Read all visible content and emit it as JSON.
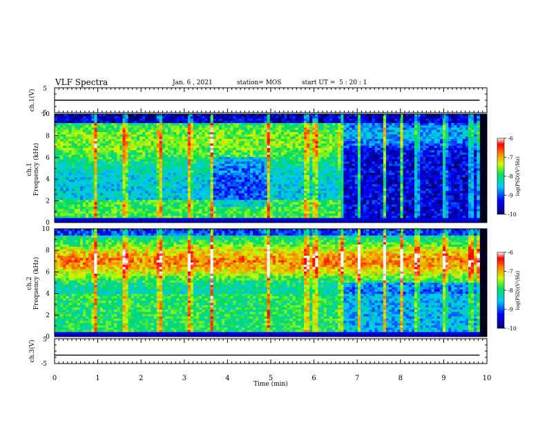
{
  "header": {
    "title": "VLF Spectra",
    "date": "Jan. 6 , 2021",
    "station": "station= MOS",
    "start_ut": "start UT =  5 : 20 : 1"
  },
  "chart_data": [
    {
      "type": "line",
      "panel": "ch1-waveform",
      "ylabel": "ch.1(V)",
      "ylim": [
        -5,
        5
      ],
      "y_ticks": [
        "5",
        "-5"
      ],
      "x": [
        0,
        10
      ],
      "values": [
        0,
        0
      ],
      "color": "#000000"
    },
    {
      "type": "heatmap",
      "panel": "ch1-spectrogram",
      "ylabel": "ch.1\nFrequency (kHz)",
      "xlim": [
        0,
        10
      ],
      "ylim": [
        0,
        10
      ],
      "y_ticks": [
        "0",
        "2",
        "4",
        "6",
        "8",
        "10"
      ],
      "data_end_min": 9.83,
      "colorbar": {
        "label": "log(PSD)(V²/Hz)",
        "ticks": [
          "-6",
          "-7",
          "-8",
          "-9",
          "-10"
        ],
        "range": [
          -10,
          -6
        ]
      },
      "transient_bursts_min": [
        0.9,
        1.6,
        2.4,
        3.1,
        3.6,
        4.9,
        5.8,
        6.0,
        6.6,
        7.0,
        7.6,
        8.0,
        8.35,
        9.0,
        9.6,
        9.8
      ]
    },
    {
      "type": "heatmap",
      "panel": "ch2-spectrogram",
      "ylabel": "ch.2\nFrequency (kHz)",
      "xlim": [
        0,
        10
      ],
      "ylim": [
        0,
        10
      ],
      "y_ticks": [
        "0",
        "2",
        "4",
        "6",
        "8",
        "10"
      ],
      "data_end_min": 9.83,
      "colorbar": {
        "label": "log(PSD)(V²/Hz)",
        "ticks": [
          "-6",
          "-7",
          "-8",
          "-9",
          "-10"
        ],
        "range": [
          -10,
          -6
        ]
      },
      "transient_bursts_min": [
        0.9,
        1.6,
        2.4,
        3.1,
        3.6,
        4.9,
        5.8,
        6.0,
        6.6,
        7.0,
        7.6,
        8.0,
        8.35,
        9.0,
        9.6,
        9.8
      ]
    },
    {
      "type": "line",
      "panel": "ch3-waveform",
      "ylabel": "ch.3(V)",
      "ylim": [
        -5,
        5
      ],
      "y_ticks": [
        "5",
        "-5"
      ],
      "x": [
        0,
        10
      ],
      "values": [
        -1.6,
        -1.6
      ],
      "color": "#000000"
    }
  ],
  "x_axis": {
    "label": "Time  (min)",
    "ticks": [
      "0",
      "1",
      "2",
      "3",
      "4",
      "5",
      "6",
      "7",
      "8",
      "9",
      "10"
    ]
  }
}
